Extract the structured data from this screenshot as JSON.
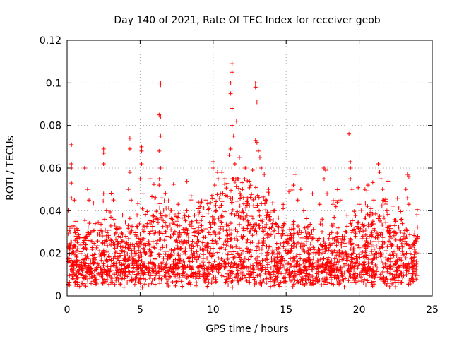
{
  "chart_data": {
    "type": "scatter",
    "title": "Day 140 of 2021, Rate Of TEC Index for receiver geob",
    "xlabel": "GPS time / hours",
    "ylabel": "ROTI / TECUs",
    "xlim": [
      0,
      25
    ],
    "ylim": [
      0,
      0.12
    ],
    "xticks": [
      0,
      5,
      10,
      15,
      20,
      25
    ],
    "yticks": [
      0,
      0.02,
      0.04,
      0.06,
      0.08,
      0.1,
      0.12
    ],
    "xtick_labels": [
      "0",
      "5",
      "10",
      "15",
      "20",
      "25"
    ],
    "ytick_labels": [
      "0",
      "0.02",
      "0.04",
      "0.06",
      "0.08",
      "0.1",
      "0.12"
    ],
    "grid": true,
    "marker": "+",
    "color": "#ff0000",
    "series": [
      {
        "name": "ROTI",
        "points": [
          [
            0.3,
            0.071
          ],
          [
            0.3,
            0.062
          ],
          [
            0.3,
            0.06
          ],
          [
            0.3,
            0.053
          ],
          [
            0.3,
            0.046
          ],
          [
            0.6,
            0.035
          ],
          [
            0.2,
            0.03
          ],
          [
            1.2,
            0.06
          ],
          [
            1.4,
            0.05
          ],
          [
            1.5,
            0.045
          ],
          [
            2.5,
            0.069
          ],
          [
            2.5,
            0.067
          ],
          [
            2.5,
            0.062
          ],
          [
            2.5,
            0.048
          ],
          [
            2.7,
            0.04
          ],
          [
            3.2,
            0.036
          ],
          [
            3.8,
            0.038
          ],
          [
            4.3,
            0.074
          ],
          [
            4.3,
            0.069
          ],
          [
            4.3,
            0.058
          ],
          [
            4.2,
            0.05
          ],
          [
            4.4,
            0.045
          ],
          [
            5.1,
            0.07
          ],
          [
            5.1,
            0.068
          ],
          [
            5.1,
            0.062
          ],
          [
            5.0,
            0.055
          ],
          [
            5.2,
            0.048
          ],
          [
            6.0,
            0.046
          ],
          [
            6.4,
            0.1
          ],
          [
            6.4,
            0.099
          ],
          [
            6.3,
            0.085
          ],
          [
            6.4,
            0.084
          ],
          [
            6.4,
            0.075
          ],
          [
            6.3,
            0.068
          ],
          [
            6.4,
            0.06
          ],
          [
            6.3,
            0.052
          ],
          [
            6.5,
            0.046
          ],
          [
            7.0,
            0.038
          ],
          [
            7.6,
            0.043
          ],
          [
            8.0,
            0.039
          ],
          [
            8.5,
            0.047
          ],
          [
            9.0,
            0.044
          ],
          [
            9.5,
            0.045
          ],
          [
            10.0,
            0.063
          ],
          [
            10.0,
            0.06
          ],
          [
            10.3,
            0.058
          ],
          [
            10.1,
            0.052
          ],
          [
            10.6,
            0.058
          ],
          [
            10.8,
            0.055
          ],
          [
            11.1,
            0.066
          ],
          [
            11.2,
            0.069
          ],
          [
            11.3,
            0.109
          ],
          [
            11.3,
            0.105
          ],
          [
            11.2,
            0.1
          ],
          [
            11.2,
            0.095
          ],
          [
            11.3,
            0.088
          ],
          [
            11.3,
            0.08
          ],
          [
            11.4,
            0.075
          ],
          [
            11.5,
            0.062
          ],
          [
            11.6,
            0.082
          ],
          [
            11.8,
            0.065
          ],
          [
            12.2,
            0.06
          ],
          [
            12.7,
            0.059
          ],
          [
            12.9,
            0.1
          ],
          [
            12.9,
            0.098
          ],
          [
            13.0,
            0.091
          ],
          [
            12.9,
            0.073
          ],
          [
            13.0,
            0.072
          ],
          [
            13.1,
            0.068
          ],
          [
            13.2,
            0.065
          ],
          [
            13.3,
            0.06
          ],
          [
            13.5,
            0.057
          ],
          [
            13.8,
            0.05
          ],
          [
            14.2,
            0.04
          ],
          [
            15.6,
            0.057
          ],
          [
            15.5,
            0.052
          ],
          [
            15.8,
            0.045
          ],
          [
            16.2,
            0.04
          ],
          [
            16.8,
            0.048
          ],
          [
            17.3,
            0.043
          ],
          [
            17.6,
            0.06
          ],
          [
            17.7,
            0.059
          ],
          [
            17.6,
            0.055
          ],
          [
            17.8,
            0.048
          ],
          [
            18.2,
            0.043
          ],
          [
            18.7,
            0.045
          ],
          [
            19.3,
            0.076
          ],
          [
            19.4,
            0.063
          ],
          [
            19.4,
            0.06
          ],
          [
            19.4,
            0.055
          ],
          [
            19.5,
            0.05
          ],
          [
            20.0,
            0.043
          ],
          [
            20.4,
            0.05
          ],
          [
            20.6,
            0.052
          ],
          [
            21.0,
            0.045
          ],
          [
            21.3,
            0.062
          ],
          [
            21.4,
            0.058
          ],
          [
            21.5,
            0.055
          ],
          [
            21.6,
            0.05
          ],
          [
            21.7,
            0.045
          ],
          [
            21.9,
            0.04
          ],
          [
            22.5,
            0.035
          ],
          [
            23.3,
            0.057
          ],
          [
            23.4,
            0.056
          ],
          [
            23.2,
            0.05
          ],
          [
            23.3,
            0.046
          ],
          [
            23.4,
            0.043
          ],
          [
            23.8,
            0.03
          ],
          [
            24.0,
            0.028
          ],
          [
            0.5,
            0.045
          ],
          [
            3.0,
            0.037
          ],
          [
            7.4,
            0.038
          ],
          [
            8.2,
            0.04
          ],
          [
            9.2,
            0.044
          ],
          [
            14.8,
            0.041
          ],
          [
            16.0,
            0.05
          ],
          [
            18.5,
            0.044
          ],
          [
            20.8,
            0.041
          ],
          [
            22.9,
            0.036
          ],
          [
            10.5,
            0.048
          ]
        ],
        "band_note": "dense band of points spanning 0 to 24 h, concentrated between about 0.005 and 0.03 TECU/min"
      }
    ]
  }
}
